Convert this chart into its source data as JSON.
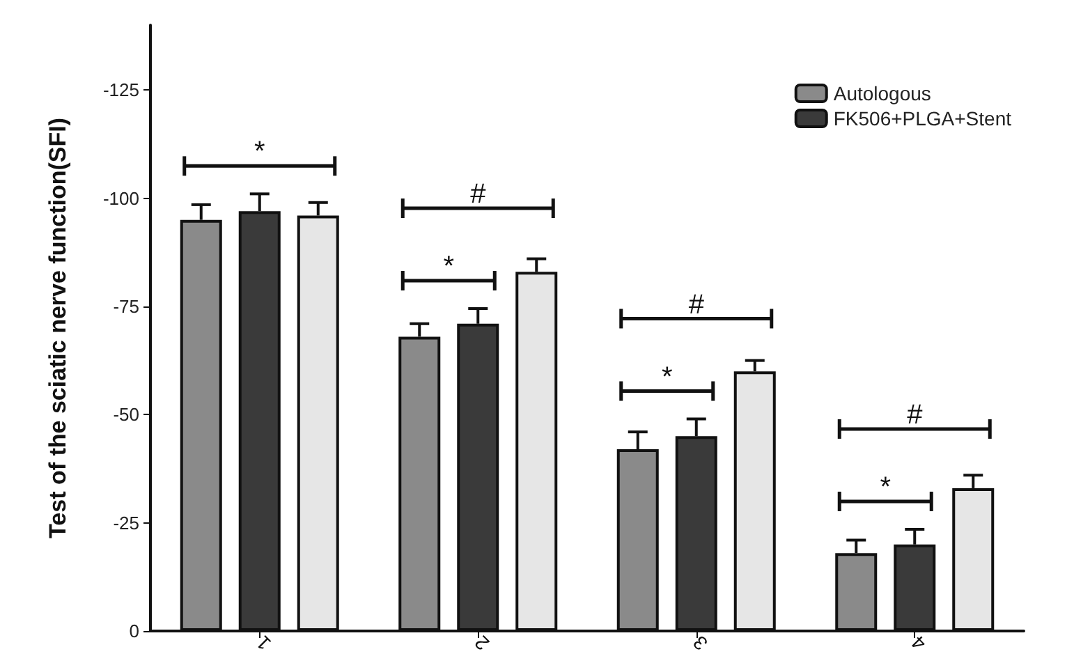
{
  "chart_data": {
    "type": "bar",
    "ylabel": "Test of the sciatic nerve function(SFI)",
    "categories": [
      "1",
      "2",
      "3",
      "4"
    ],
    "series": [
      {
        "name": "Autologous",
        "color": "#8a8a8a",
        "values": [
          -95,
          -68,
          -42,
          -18
        ],
        "errors": [
          3.5,
          3,
          4,
          3
        ]
      },
      {
        "name": "FK506+PLGA+Stent",
        "color": "#3a3a3a",
        "values": [
          -97,
          -71,
          -45,
          -20
        ],
        "errors": [
          4,
          3.5,
          4,
          3.5
        ]
      },
      {
        "color": "#e6e6e6",
        "values": [
          -96,
          -83,
          -60,
          -33
        ],
        "errors": [
          3,
          3,
          2.5,
          3
        ]
      }
    ],
    "ylim": [
      0,
      -140
    ],
    "yticks": [
      0,
      -25,
      -50,
      -75,
      -100,
      -125
    ],
    "grid": false,
    "legend": "top right",
    "annotations": [
      "*",
      "#",
      "*",
      "#",
      "*",
      "#",
      "*"
    ]
  }
}
